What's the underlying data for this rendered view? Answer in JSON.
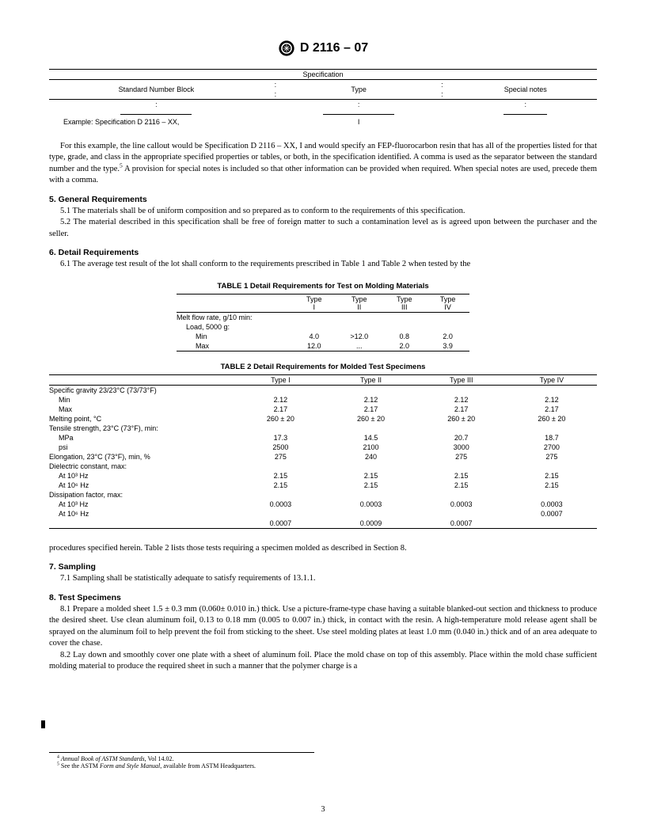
{
  "header": {
    "doc_id": "D 2116 – 07"
  },
  "spec_table": {
    "title": "Specification",
    "cols": [
      "Standard Number Block",
      "Type",
      "Special notes"
    ],
    "example_label": "Example: Specification D 2116 – XX,",
    "example_type": "I"
  },
  "para_callout": "For this example, the line callout would be Specification D 2116 – XX, I and would specify an FEP-fluorocarbon resin that has all of the properties listed for that type, grade, and class in the appropriate specified properties or tables, or both, in the specification identified. A comma is used as the separator between the standard number and the type.",
  "para_callout_tail": " A provision for special notes is included so that other information can be provided when required. When special notes are used, precede them with a comma.",
  "sec5": {
    "head": "5.  General Requirements",
    "p1": "5.1  The materials shall be of uniform composition and so prepared as to conform to the requirements of this specification.",
    "p2": "5.2  The material described in this specification shall be free of foreign matter to such a contamination level as is agreed upon between the purchaser and the seller."
  },
  "sec6": {
    "head": "6.  Detail Requirements",
    "p1": "6.1  The average test result of the lot shall conform to the requirements prescribed in Table 1 and Table 2 when tested by the"
  },
  "table1": {
    "title": "TABLE 1  Detail Requirements for Test on Molding Materials",
    "headers": [
      "",
      "Type I",
      "Type II",
      "Type III",
      "Type IV"
    ],
    "row_label": "Melt flow rate, g/10 min:",
    "load_label": "Load, 5000 g:",
    "min_row": [
      "Min",
      "4.0",
      ">12.0",
      "0.8",
      "2.0"
    ],
    "max_row": [
      "Max",
      "12.0",
      "...",
      "2.0",
      "3.9"
    ]
  },
  "table2": {
    "title": "TABLE 2  Detail Requirements for Molded Test Specimens",
    "headers": [
      "",
      "Type I",
      "Type II",
      "Type III",
      "Type IV"
    ],
    "rows": [
      [
        "Specific gravity 23/23°C (73/73°F)",
        "",
        "",
        "",
        ""
      ],
      [
        "  Min",
        "2.12",
        "2.12",
        "2.12",
        "2.12"
      ],
      [
        "  Max",
        "2.17",
        "2.17",
        "2.17",
        "2.17"
      ],
      [
        "Melting point, °C",
        "260 ± 20",
        "260 ± 20",
        "260 ± 20",
        "260 ± 20"
      ],
      [
        "Tensile strength, 23°C (73°F), min:",
        "",
        "",
        "",
        ""
      ],
      [
        "  MPa",
        "17.3",
        "14.5",
        "20.7",
        "18.7"
      ],
      [
        "  psi",
        "2500",
        "2100",
        "3000",
        "2700"
      ],
      [
        "Elongation, 23°C (73°F), min, %",
        "275",
        "240",
        "275",
        "275"
      ],
      [
        "Dielectric constant, max:",
        "",
        "",
        "",
        ""
      ],
      [
        "  At 10³ Hz",
        "2.15",
        "2.15",
        "2.15",
        "2.15"
      ],
      [
        "  At 10⁶ Hz",
        "2.15",
        "2.15",
        "2.15",
        "2.15"
      ],
      [
        "Dissipation factor, max:",
        "",
        "",
        "",
        ""
      ],
      [
        "  At 10³ Hz",
        "0.0003",
        "0.0003",
        "0.0003",
        "0.0003"
      ],
      [
        "  At 10⁶ Hz",
        "",
        "",
        "",
        "0.0007"
      ],
      [
        "",
        "0.0007",
        "0.0009",
        "0.0007",
        ""
      ]
    ]
  },
  "para_proc": "procedures specified herein. Table 2 lists those tests requiring a specimen molded as described in Section 8.",
  "sec7": {
    "head": "7.  Sampling",
    "p1": "7.1  Sampling shall be statistically adequate to satisfy requirements of 13.1.1."
  },
  "sec8": {
    "head": "8.  Test Specimens",
    "p1": "8.1  Prepare a molded sheet 1.5 ± 0.3 mm (0.060± 0.010 in.) thick. Use a picture-frame-type chase having a suitable blanked-out section and thickness to produce the desired sheet. Use clean aluminum foil, 0.13 to 0.18 mm (0.005 to 0.007 in.) thick, in contact with the resin. A high-temperature mold release agent shall be sprayed on the aluminum foil to help prevent the foil from sticking to the sheet. Use steel molding plates at least 1.0 mm (0.040 in.) thick and of an area adequate to cover the chase.",
    "p2": "8.2  Lay down and smoothly cover one plate with a sheet of aluminum foil. Place the mold chase on top of this assembly. Place within the mold chase sufficient molding material to produce the required sheet in such a manner that the polymer charge is a"
  },
  "footnotes": {
    "f4a": "Annual Book of ASTM Standards",
    "f4b": ", Vol 14.02.",
    "f5a": "See the ASTM ",
    "f5b": "Form and Style Manual",
    "f5c": ", available from ASTM Headquarters."
  },
  "page_number": "3"
}
